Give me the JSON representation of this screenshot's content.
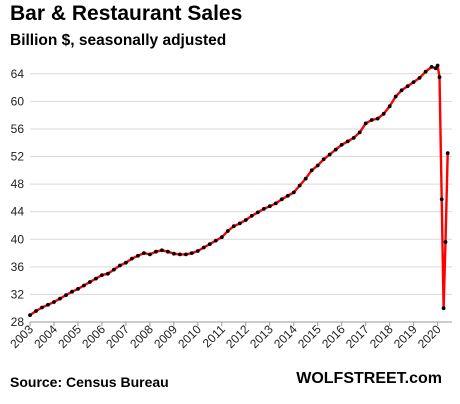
{
  "chart_data": {
    "type": "line",
    "title": "Bar & Restaurant Sales",
    "subtitle": "Billion $, seasonally adjusted",
    "xlabel": "",
    "ylabel": "",
    "ylim": [
      28,
      66
    ],
    "xlim": [
      2003,
      2020.6
    ],
    "yticks": [
      28,
      32,
      36,
      40,
      44,
      48,
      52,
      56,
      60,
      64
    ],
    "ytick_labels": [
      "28",
      "32",
      "36",
      "40",
      "44",
      "48",
      "52",
      "56",
      "60",
      "64"
    ],
    "xtick_labels": [
      "2003",
      "2004",
      "2005",
      "2006",
      "2007",
      "2008",
      "2009",
      "2010",
      "2011",
      "2012",
      "2013",
      "2014",
      "2015",
      "2016",
      "2017",
      "2018",
      "2019",
      "2020"
    ],
    "grid": "horizontal",
    "legend": "none",
    "colors": {
      "line": "#ff0000",
      "markers": "#000000",
      "grid": "#d9d9d9"
    },
    "series": [
      {
        "x": [
          2003.0,
          2003.25,
          2003.5,
          2003.75,
          2004.0,
          2004.25,
          2004.5,
          2004.75,
          2005.0,
          2005.25,
          2005.5,
          2005.75,
          2006.0,
          2006.25,
          2006.5,
          2006.75,
          2007.0,
          2007.25,
          2007.5,
          2007.75,
          2008.0,
          2008.25,
          2008.5,
          2008.75,
          2009.0,
          2009.25,
          2009.5,
          2009.75,
          2010.0,
          2010.25,
          2010.5,
          2010.75,
          2011.0,
          2011.25,
          2011.5,
          2011.75,
          2012.0,
          2012.25,
          2012.5,
          2012.75,
          2013.0,
          2013.25,
          2013.5,
          2013.75,
          2014.0,
          2014.25,
          2014.5,
          2014.75,
          2015.0,
          2015.25,
          2015.5,
          2015.75,
          2016.0,
          2016.25,
          2016.5,
          2016.75,
          2017.0,
          2017.25,
          2017.5,
          2017.75,
          2018.0,
          2018.25,
          2018.5,
          2018.75,
          2019.0,
          2019.25,
          2019.5,
          2019.75,
          2019.92,
          2020.0,
          2020.08,
          2020.17,
          2020.25,
          2020.33,
          2020.42
        ],
        "values": [
          29.0,
          29.6,
          30.1,
          30.5,
          30.9,
          31.4,
          31.9,
          32.4,
          32.8,
          33.3,
          33.8,
          34.3,
          34.8,
          35.0,
          35.6,
          36.2,
          36.6,
          37.2,
          37.6,
          38.0,
          37.8,
          38.2,
          38.4,
          38.2,
          37.9,
          37.8,
          37.8,
          38.0,
          38.3,
          38.8,
          39.3,
          39.8,
          40.3,
          41.2,
          41.9,
          42.3,
          42.8,
          43.4,
          43.9,
          44.4,
          44.8,
          45.2,
          45.8,
          46.3,
          46.8,
          47.8,
          48.8,
          50.0,
          50.7,
          51.6,
          52.3,
          53.0,
          53.7,
          54.2,
          54.7,
          55.5,
          56.8,
          57.3,
          57.5,
          58.2,
          59.3,
          60.7,
          61.6,
          62.2,
          62.8,
          63.4,
          64.3,
          65.0,
          64.8,
          65.2,
          63.5,
          45.8,
          30.0,
          39.6,
          52.5
        ]
      }
    ]
  },
  "header": {
    "title": "Bar & Restaurant Sales",
    "subtitle": "Billion $, seasonally adjusted"
  },
  "footer": {
    "source": "Source: Census Bureau",
    "brand": "WOLFSTREET.com"
  }
}
